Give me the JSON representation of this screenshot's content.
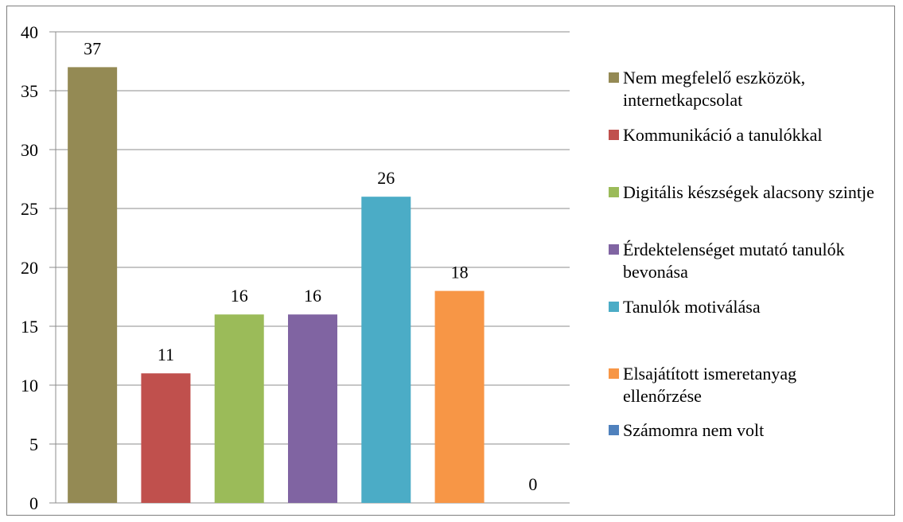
{
  "chart_data": {
    "type": "bar",
    "title": "",
    "xlabel": "",
    "ylabel": "",
    "ylim": [
      0,
      40
    ],
    "yticks": [
      0,
      5,
      10,
      15,
      20,
      25,
      30,
      35,
      40
    ],
    "grid": true,
    "legend_position": "right",
    "series": [
      {
        "name": "Nem megfelelő eszközök, internetkapcsolat",
        "value": 37,
        "color": "#948A54"
      },
      {
        "name": "Kommunikáció a tanulókkal",
        "value": 11,
        "color": "#C0504D"
      },
      {
        "name": "Digitális készségek alacsony szintje",
        "value": 16,
        "color": "#9BBB59"
      },
      {
        "name": "Érdektelenséget mutató tanulók bevonása",
        "value": 16,
        "color": "#8064A2"
      },
      {
        "name": "Tanulók motiválása",
        "value": 26,
        "color": "#4BACC6"
      },
      {
        "name": "Elsajátított ismeretanyag ellenőrzése",
        "value": 18,
        "color": "#F79646"
      },
      {
        "name": "Számomra nem volt",
        "value": 0,
        "color": "#4F81BD"
      }
    ]
  }
}
